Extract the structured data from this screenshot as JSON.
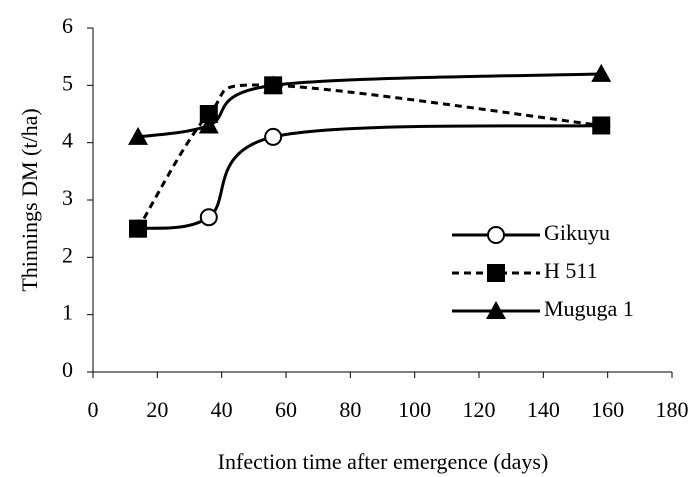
{
  "chart_data": {
    "type": "line",
    "xlabel": "Infection time after emergence (days)",
    "ylabel": "Thinnings DM (t/ha)",
    "x": [
      14,
      36,
      56,
      158
    ],
    "series": [
      {
        "name": "Gikuyu",
        "color": "#000000",
        "marker": "circle",
        "linestyle": "solid",
        "values": [
          2.5,
          2.7,
          4.1,
          4.3
        ]
      },
      {
        "name": "H 511",
        "color": "#000000",
        "marker": "square",
        "linestyle": "dashed",
        "values": [
          2.5,
          4.5,
          5.0,
          4.3
        ]
      },
      {
        "name": "Muguga 1",
        "color": "#000000",
        "marker": "triangle",
        "linestyle": "solid",
        "values": [
          4.1,
          4.3,
          5.0,
          5.2
        ]
      }
    ],
    "xlim": [
      0,
      180
    ],
    "xticks": [
      0,
      20,
      40,
      60,
      80,
      100,
      120,
      140,
      160,
      180
    ],
    "ylim": [
      0,
      6
    ],
    "yticks": [
      0,
      1,
      2,
      3,
      4,
      5,
      6
    ],
    "legend": "right",
    "grid": false
  }
}
